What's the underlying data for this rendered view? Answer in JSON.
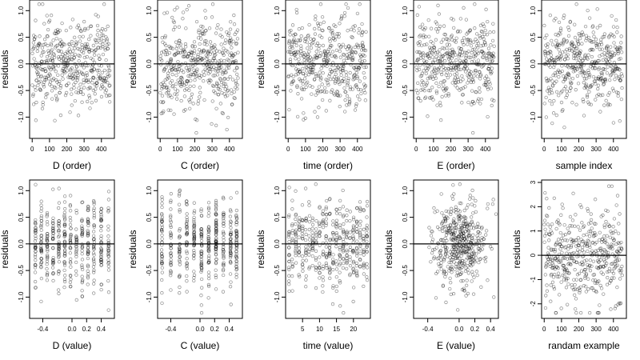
{
  "chart_data": [
    {
      "type": "scatter",
      "xlabel": "D (order)",
      "ylabel": "residuals",
      "xlim": [
        -15,
        475
      ],
      "ylim": [
        -1.4,
        1.2
      ],
      "xticks": [
        0,
        100,
        200,
        300,
        400
      ],
      "xtick_labels": [
        "0",
        "100",
        "200",
        "300",
        "400"
      ],
      "yticks": [
        -1,
        -0.5,
        0,
        0.5,
        1
      ],
      "ytick_labels": [
        "-1.0",
        "-0.5",
        "0.0",
        "0.5",
        "1.0"
      ],
      "hline": 0,
      "x_kind": "order",
      "n": 450,
      "seed": 11
    },
    {
      "type": "scatter",
      "xlabel": "C (order)",
      "ylabel": "residuals",
      "xlim": [
        -15,
        475
      ],
      "ylim": [
        -1.4,
        1.2
      ],
      "xticks": [
        0,
        100,
        200,
        300,
        400
      ],
      "xtick_labels": [
        "0",
        "100",
        "200",
        "300",
        "400"
      ],
      "yticks": [
        -1,
        -0.5,
        0,
        0.5,
        1
      ],
      "ytick_labels": [
        "-1.0",
        "-0.5",
        "0.0",
        "0.5",
        "1.0"
      ],
      "hline": 0,
      "x_kind": "order",
      "n": 450,
      "seed": 23
    },
    {
      "type": "scatter",
      "xlabel": "time (order)",
      "ylabel": "residuals",
      "xlim": [
        -15,
        475
      ],
      "ylim": [
        -1.4,
        1.2
      ],
      "xticks": [
        0,
        100,
        200,
        300,
        400
      ],
      "xtick_labels": [
        "0",
        "100",
        "200",
        "300",
        "400"
      ],
      "yticks": [
        -1,
        -0.5,
        0,
        0.5,
        1
      ],
      "ytick_labels": [
        "-1.0",
        "-0.5",
        "0.0",
        "0.5",
        "1.0"
      ],
      "hline": 0,
      "x_kind": "order",
      "n": 450,
      "seed": 37
    },
    {
      "type": "scatter",
      "xlabel": "E (order)",
      "ylabel": "residuals",
      "xlim": [
        -15,
        475
      ],
      "ylim": [
        -1.4,
        1.2
      ],
      "xticks": [
        0,
        100,
        200,
        300,
        400
      ],
      "xtick_labels": [
        "0",
        "100",
        "200",
        "300",
        "400"
      ],
      "yticks": [
        -1,
        -0.5,
        0,
        0.5,
        1
      ],
      "ytick_labels": [
        "-1.0",
        "-0.5",
        "0.0",
        "0.5",
        "1.0"
      ],
      "hline": 0,
      "x_kind": "order",
      "n": 450,
      "seed": 41
    },
    {
      "type": "scatter",
      "xlabel": "sample index",
      "ylabel": "residuals",
      "xlim": [
        -15,
        475
      ],
      "ylim": [
        -1.4,
        1.2
      ],
      "xticks": [
        0,
        100,
        200,
        300,
        400
      ],
      "xtick_labels": [
        "0",
        "100",
        "200",
        "300",
        "400"
      ],
      "yticks": [
        -1,
        -0.5,
        0,
        0.5,
        1
      ],
      "ytick_labels": [
        "-1.0",
        "-0.5",
        "0.0",
        "0.5",
        "1.0"
      ],
      "hline": 0,
      "x_kind": "order",
      "n": 450,
      "seed": 53
    },
    {
      "type": "scatter",
      "xlabel": "D (value)",
      "ylabel": "residuals",
      "xlim": [
        -0.58,
        0.58
      ],
      "ylim": [
        -1.4,
        1.2
      ],
      "xticks": [
        -0.4,
        0,
        0.2,
        0.4
      ],
      "xtick_labels": [
        "-0.4",
        "0.0",
        "0.2",
        "0.4"
      ],
      "yticks": [
        -1,
        -0.5,
        0,
        0.5,
        1
      ],
      "ytick_labels": [
        "-1.0",
        "-0.5",
        "0.0",
        "0.5",
        "1.0"
      ],
      "hline": 0,
      "x_kind": "columns",
      "columns": [
        -0.5,
        -0.42,
        -0.34,
        -0.26,
        -0.18,
        -0.1,
        -0.02,
        0.06,
        0.14,
        0.22,
        0.3,
        0.4,
        0.5
      ],
      "n": 450,
      "seed": 61
    },
    {
      "type": "scatter",
      "xlabel": "C (value)",
      "ylabel": "residuals",
      "xlim": [
        -0.58,
        0.58
      ],
      "ylim": [
        -1.4,
        1.2
      ],
      "xticks": [
        -0.4,
        0,
        0.2,
        0.4
      ],
      "xtick_labels": [
        "-0.4",
        "0.0",
        "0.2",
        "0.4"
      ],
      "yticks": [
        -1,
        -0.5,
        0,
        0.5,
        1
      ],
      "ytick_labels": [
        "-1.0",
        "-0.5",
        "0.0",
        "0.5",
        "1.0"
      ],
      "hline": 0,
      "x_kind": "columns",
      "columns": [
        -0.52,
        -0.4,
        -0.28,
        -0.18,
        -0.08,
        0.02,
        0.12,
        0.22,
        0.32,
        0.42,
        0.5
      ],
      "n": 450,
      "seed": 71
    },
    {
      "type": "scatter",
      "xlabel": "time (value)",
      "ylabel": "residuals",
      "xlim": [
        0,
        25
      ],
      "ylim": [
        -1.4,
        1.2
      ],
      "xticks": [
        5,
        10,
        15,
        20
      ],
      "xtick_labels": [
        "5",
        "10",
        "15",
        "20"
      ],
      "yticks": [
        -1,
        -0.5,
        0,
        0.5,
        1
      ],
      "ytick_labels": [
        "-1.0",
        "-0.5",
        "0.0",
        "0.5",
        "1.0"
      ],
      "hline": 0,
      "x_kind": "columns",
      "columns": [
        1,
        2,
        3,
        4,
        5,
        6,
        7,
        8,
        9,
        10,
        11,
        12,
        13,
        14,
        15,
        16,
        17,
        18,
        19,
        20,
        21,
        22,
        23,
        24
      ],
      "n": 450,
      "seed": 83
    },
    {
      "type": "scatter",
      "xlabel": "E (value)",
      "ylabel": "residuals",
      "xlim": [
        -0.58,
        0.5
      ],
      "ylim": [
        -1.4,
        1.2
      ],
      "xticks": [
        -0.4,
        0,
        0.2,
        0.4
      ],
      "xtick_labels": [
        "-0.4",
        "0.0",
        "0.2",
        "0.4"
      ],
      "yticks": [
        -1,
        -0.5,
        0,
        0.5,
        1
      ],
      "ytick_labels": [
        "-1.0",
        "-0.5",
        "0.0",
        "0.5",
        "1.0"
      ],
      "hline": 0,
      "x_kind": "gauss",
      "center": 0.0,
      "spread": 0.18,
      "n": 450,
      "seed": 97
    },
    {
      "type": "scatter",
      "xlabel": "randam example",
      "ylabel": "residuals",
      "xlim": [
        -15,
        475
      ],
      "ylim": [
        -2.6,
        3.1
      ],
      "xticks": [
        0,
        100,
        200,
        300,
        400
      ],
      "xtick_labels": [
        "0",
        "100",
        "200",
        "300",
        "400"
      ],
      "yticks": [
        -2,
        -1,
        0,
        1,
        2,
        3
      ],
      "ytick_labels": [
        "-2",
        "-1",
        "0",
        "1",
        "2",
        "3"
      ],
      "hline": 0,
      "x_kind": "order",
      "n": 450,
      "seed": 101
    }
  ]
}
